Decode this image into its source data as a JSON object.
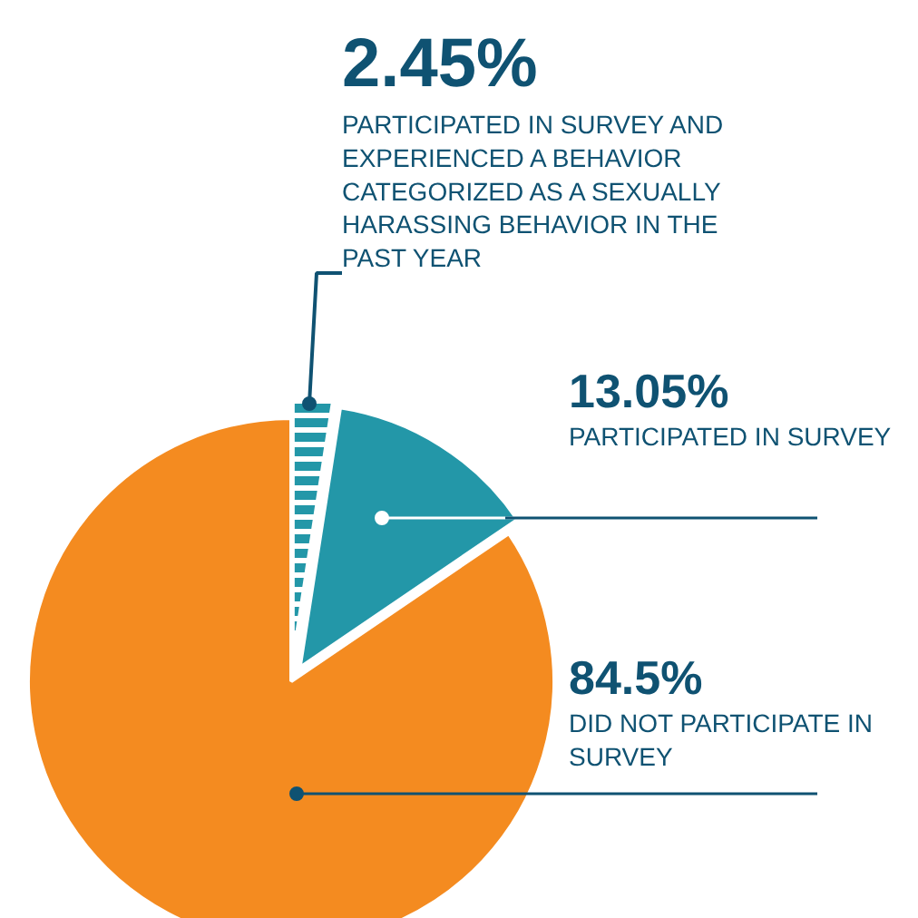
{
  "chart_data": {
    "type": "pie",
    "categories": [
      "PARTICIPATED IN SURVEY AND EXPERIENCED A BEHAVIOR CATEGORIZED AS A SEXUALLY HARASSING BEHAVIOR IN THE PAST YEAR",
      "PARTICIPATED IN SURVEY",
      "DID NOT PARTICIPATE IN SURVEY"
    ],
    "values": [
      2.45,
      13.05,
      84.5
    ],
    "colors": [
      "#2397a8",
      "#2397a8",
      "#f48b20"
    ],
    "value_labels": [
      "2.45%",
      "13.05%",
      "84.5%"
    ]
  }
}
